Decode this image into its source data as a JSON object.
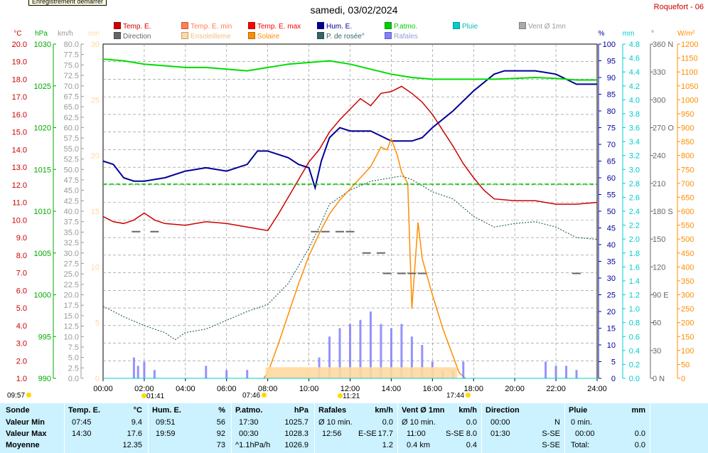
{
  "header": {
    "record_button": "Enregistrement démarrer",
    "title": "samedi, 03/02/2024",
    "station": "Roquefort - 06"
  },
  "legend": [
    {
      "label": "Temp. E.",
      "color": "#cc0000"
    },
    {
      "label": "Temp. E. min",
      "color": "#ff7f50"
    },
    {
      "label": "Temp. E. max",
      "color": "#ff0000"
    },
    {
      "label": "Hum. E.",
      "color": "#000099"
    },
    {
      "label": "P.atmo.",
      "color": "#00cc00"
    },
    {
      "label": "Pluie",
      "color": "#00cccc"
    },
    {
      "label": "Vent Ø 1mn",
      "color": "#aaaaaa"
    },
    {
      "label": "Direction",
      "color": "#666666"
    },
    {
      "label": "Ensoleilleme",
      "color": "#ffd9a0"
    },
    {
      "label": "Solaire",
      "color": "#ff8c00"
    },
    {
      "label": "P. de rosée°",
      "color": "#336666"
    },
    {
      "label": "Rafales",
      "color": "#8080ff"
    }
  ],
  "axes": {
    "temp": {
      "unit": "°C",
      "color": "#cc0000",
      "ticks": [
        "20.0",
        "19.0",
        "18.0",
        "17.0",
        "16.0",
        "15.0",
        "14.0",
        "13.0",
        "12.0",
        "11.0",
        "10.0",
        "9.0",
        "8.0",
        "7.0",
        "6.0",
        "5.0",
        "4.0",
        "3.0",
        "2.0",
        "1.0"
      ]
    },
    "press": {
      "unit": "hPa",
      "color": "#00aa00",
      "ticks": [
        "1030",
        "1025",
        "1020",
        "1015",
        "1010",
        "1005",
        "1000",
        "995",
        "990"
      ]
    },
    "wind": {
      "unit": "km/h",
      "color": "#999999",
      "ticks": [
        "80.0",
        "77.5",
        "75.0",
        "72.5",
        "70.0",
        "67.5",
        "65.0",
        "62.5",
        "60.0",
        "57.5",
        "55.0",
        "52.5",
        "50.0",
        "47.5",
        "45.0",
        "42.5",
        "40.0",
        "37.5",
        "35.0",
        "32.5",
        "30.0",
        "27.5",
        "25.0",
        "22.5",
        "20.0",
        "17.5",
        "15.0",
        "12.5",
        "10.0",
        "7.5",
        "5.0",
        "2.5",
        "0.0"
      ]
    },
    "sun": {
      "unit": "min",
      "color": "#ffd9a0",
      "ticks": [
        "30",
        "25",
        "20",
        "15",
        "10",
        "5",
        "0"
      ]
    },
    "hum": {
      "unit": "%",
      "color": "#000099",
      "ticks": [
        "100",
        "95",
        "90",
        "85",
        "80",
        "75",
        "70",
        "65",
        "60",
        "55",
        "50",
        "45",
        "40",
        "35",
        "30",
        "25",
        "20",
        "15",
        "10",
        "5",
        "0"
      ]
    },
    "rain": {
      "unit": "mm",
      "color": "#00cccc",
      "ticks": [
        "4.8",
        "4.6",
        "4.4",
        "4.2",
        "4.0",
        "3.8",
        "3.6",
        "3.4",
        "3.2",
        "3.0",
        "2.8",
        "2.6",
        "2.4",
        "2.2",
        "2.0",
        "1.8",
        "1.6",
        "1.4",
        "1.2",
        "1.0",
        "0.8",
        "0.6",
        "0.4",
        "0.2",
        "0.0"
      ]
    },
    "dir": {
      "unit": "°",
      "color": "#666666",
      "ticks": [
        "360 N",
        "330",
        "300",
        "270 O",
        "240",
        "210",
        "180 S",
        "150",
        "120",
        "90 E",
        "60",
        "30",
        "0 N"
      ]
    },
    "solar": {
      "unit": "W/m²",
      "color": "#ff8c00",
      "ticks": [
        "1200",
        "1150",
        "1100",
        "1050",
        "1000",
        "950",
        "900",
        "850",
        "800",
        "750",
        "700",
        "650",
        "600",
        "550",
        "500",
        "450",
        "400",
        "350",
        "300",
        "250",
        "200",
        "150",
        "100",
        "50",
        "0"
      ]
    },
    "time": {
      "ticks": [
        "00:00",
        "02:00",
        "04:00",
        "06:00",
        "08:00",
        "10:00",
        "12:00",
        "14:00",
        "16:00",
        "18:00",
        "20:00",
        "22:00",
        "24:00"
      ]
    }
  },
  "chart_data": {
    "type": "line",
    "title": "samedi, 03/02/2024",
    "x_unit": "hours",
    "xlim": [
      0,
      24
    ],
    "series": [
      {
        "name": "Temp. E.",
        "axis": "temp",
        "ylim": [
          1,
          20
        ],
        "color": "#cc0000",
        "x": [
          0,
          0.5,
          1,
          1.5,
          2,
          2.5,
          3,
          4,
          5,
          6,
          7,
          7.5,
          8,
          8.5,
          9,
          9.5,
          10,
          10.5,
          11,
          11.5,
          12,
          12.5,
          13,
          13.5,
          14,
          14.5,
          15,
          15.5,
          16,
          16.5,
          17,
          17.5,
          18,
          18.5,
          19,
          20,
          21,
          22,
          23,
          24
        ],
        "y": [
          10.2,
          9.9,
          9.8,
          10.0,
          10.4,
          10.0,
          9.8,
          9.7,
          9.9,
          9.8,
          9.6,
          9.5,
          9.4,
          10.3,
          11.3,
          12.3,
          13.3,
          14.0,
          15.0,
          15.7,
          16.3,
          16.9,
          16.5,
          17.2,
          17.3,
          17.6,
          17.2,
          16.7,
          16.0,
          15.1,
          14.2,
          13.2,
          12.4,
          11.7,
          11.2,
          11.1,
          11.1,
          10.9,
          10.9,
          11.0
        ]
      },
      {
        "name": "Hum. E.",
        "axis": "hum",
        "ylim": [
          0,
          100
        ],
        "color": "#000099",
        "x": [
          0,
          0.5,
          1,
          1.5,
          2,
          3,
          4,
          5,
          6,
          7,
          7.5,
          8,
          8.5,
          9,
          9.5,
          10,
          10.3,
          10.6,
          11,
          11.5,
          12,
          13,
          14,
          15,
          15.5,
          16,
          17,
          18,
          19,
          19.5,
          20,
          21,
          22,
          23,
          24
        ],
        "y": [
          65,
          64,
          60,
          59,
          59,
          60,
          62,
          63,
          62,
          64,
          68,
          68,
          67,
          66,
          64,
          63,
          57,
          65,
          72,
          75,
          74,
          74,
          71,
          71,
          72,
          75,
          80,
          86,
          91,
          92,
          92,
          92,
          91,
          88,
          88
        ]
      },
      {
        "name": "P.atmo.",
        "axis": "press",
        "ylim": [
          990,
          1030
        ],
        "color": "#00dd00",
        "x": [
          0,
          1,
          2,
          3,
          4,
          5,
          6,
          7,
          8,
          9,
          10,
          11,
          12,
          13,
          14,
          15,
          16,
          17,
          18,
          19,
          20,
          21,
          22,
          23,
          24
        ],
        "y": [
          1028.2,
          1028.0,
          1027.6,
          1027.4,
          1027.2,
          1027.2,
          1027.0,
          1026.8,
          1027.2,
          1027.6,
          1027.8,
          1028.0,
          1027.6,
          1027.0,
          1026.4,
          1026.0,
          1025.8,
          1025.8,
          1025.8,
          1025.8,
          1025.9,
          1026.0,
          1025.9,
          1025.7,
          1025.7
        ]
      },
      {
        "name": "P. de rosée°",
        "axis": "temp",
        "ylim": [
          1,
          20
        ],
        "color": "#336666",
        "x": [
          0,
          1,
          2,
          3,
          3.5,
          4,
          5,
          6,
          7,
          8,
          9,
          10,
          10.5,
          11,
          12,
          13,
          14,
          14.5,
          15,
          16,
          16.5,
          17,
          18,
          19,
          20,
          21,
          22,
          23,
          24
        ],
        "y": [
          5.1,
          4.5,
          4.0,
          3.6,
          3.2,
          3.6,
          3.8,
          4.3,
          4.8,
          5.2,
          6.4,
          8.4,
          9.6,
          10.9,
          11.7,
          12.2,
          12.4,
          12.5,
          12.3,
          11.6,
          11.4,
          11.2,
          10.2,
          9.6,
          9.8,
          9.9,
          9.6,
          9.0,
          8.9
        ]
      },
      {
        "name": "Solaire",
        "axis": "solar",
        "ylim": [
          0,
          1200
        ],
        "color": "#ff8c00",
        "x": [
          7.8,
          8,
          8.5,
          9,
          9.5,
          10,
          10.5,
          11,
          11.5,
          12,
          12.5,
          13,
          13.5,
          13.8,
          14,
          14.3,
          14.5,
          14.8,
          15,
          15.3,
          15.5,
          16,
          16.5,
          17,
          17.3,
          17.6
        ],
        "y": [
          0,
          20,
          120,
          230,
          340,
          440,
          520,
          590,
          640,
          680,
          720,
          760,
          830,
          820,
          860,
          800,
          740,
          700,
          250,
          560,
          430,
          300,
          180,
          80,
          20,
          0
        ]
      },
      {
        "name": "Rafales",
        "axis": "wind",
        "ylim": [
          0,
          80
        ],
        "color": "#8080ff",
        "x": [
          1.5,
          1.7,
          2.0,
          2.5,
          5.0,
          6.0,
          7.0,
          10.5,
          11.0,
          11.5,
          12.0,
          12.5,
          13.0,
          13.5,
          14.0,
          14.5,
          15.0,
          15.5,
          16.0,
          16.5,
          17.0,
          17.5,
          21.5,
          22.0,
          22.5,
          23.0
        ],
        "y": [
          5,
          3,
          4,
          2,
          3,
          2,
          2,
          5,
          10,
          12,
          13,
          14,
          16,
          13,
          12,
          13,
          10,
          8,
          4,
          2,
          2,
          4,
          4,
          3,
          3,
          2
        ]
      },
      {
        "name": "Direction",
        "axis": "dir",
        "ylim": [
          0,
          360
        ],
        "color": "#666666",
        "x": [
          1.6,
          2.5,
          10.3,
          10.8,
          11.5,
          12,
          12.8,
          13.5,
          13.8,
          14.5,
          15,
          15.5,
          23
        ],
        "y": [
          158,
          158,
          158,
          158,
          158,
          158,
          135,
          135,
          113,
          113,
          113,
          113,
          113
        ]
      },
      {
        "name": "Ensoleilleme",
        "axis": "sun",
        "ylim": [
          0,
          30
        ],
        "color": "#ffd9a0",
        "x": [
          7.9,
          17.2
        ],
        "y": [
          1,
          1
        ]
      },
      {
        "name": "Pluie",
        "axis": "rain",
        "ylim": [
          0,
          4.8
        ],
        "color": "#00cccc",
        "x": [
          0,
          24
        ],
        "y": [
          0,
          0
        ]
      }
    ],
    "reference_line": {
      "name": "P.atmo. ref",
      "axis": "press",
      "value": 1013.25,
      "color": "#00cc00"
    }
  },
  "sun_events": {
    "sunrise_left": "09:57",
    "a": "01:41",
    "b": "07:46",
    "c": "11:21",
    "d": "17:44"
  },
  "summary": {
    "rows": [
      "Sonde",
      "Valeur Min",
      "Valeur Max",
      "Moyenne"
    ],
    "temp": {
      "h": "Temp. E.",
      "u": "°C",
      "min_t": "07:45",
      "min_v": "9.4",
      "max_t": "14:30",
      "max_v": "17.6",
      "avg": "12.35"
    },
    "hum": {
      "h": "Hum. E.",
      "u": "%",
      "min_t": "09:51",
      "min_v": "56",
      "max_t": "19:59",
      "max_v": "92",
      "avg": "73"
    },
    "press": {
      "h": "P.atmo.",
      "u": "hPa",
      "min_t": "17:30",
      "min_v": "1025.7",
      "max_t": "00:30",
      "max_v": "1028.3",
      "avg_l": "^1.1hPa/h",
      "avg": "1026.9"
    },
    "gust": {
      "h": "Rafales",
      "u": "km/h",
      "min_t": "Ø 10 min.",
      "min_v": "0.0",
      "max_t": "12:56",
      "max_d": "E-SE",
      "max_v": "17.7",
      "avg": "1.2"
    },
    "wind": {
      "h": "Vent Ø 1mn",
      "u": "km/h",
      "min_t": "Ø 10 min.",
      "min_v": "0.0",
      "max_t": "11:00",
      "max_d": "S-SE",
      "max_v": "8.0",
      "avg_l": "0.4 km",
      "avg": "0.4"
    },
    "dir": {
      "h": "Direction",
      "min_t": "00:00",
      "min_v": "N",
      "max_t": "01:30",
      "max_v": "S-SE",
      "avg": "S-SE"
    },
    "rain": {
      "h": "Pluie",
      "u": "mm",
      "min_t": "0 min.",
      "max_t": "00:00",
      "max_v": "0.0",
      "avg_l": "Total:",
      "avg": "0.0"
    }
  }
}
